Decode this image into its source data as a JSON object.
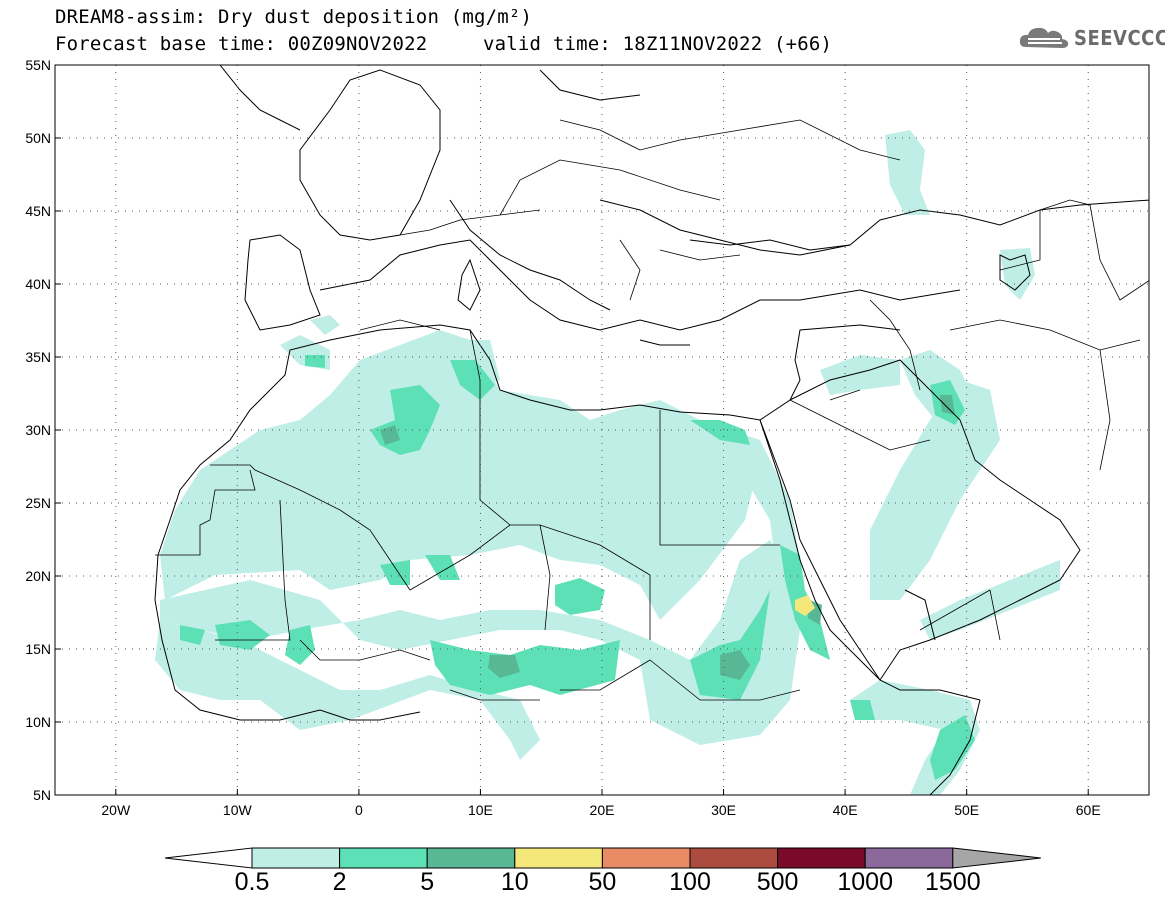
{
  "title_line1": "DREAM8-assim: Dry dust deposition (mg/m²)",
  "title_line2": "Forecast base time: 00Z09NOV2022",
  "title_valid": "valid time: 18Z11NOV2022 (+66)",
  "logo": {
    "text": "SEEVCCC",
    "icon": "cloud-logo-icon"
  },
  "map": {
    "lon_range": [
      -25,
      65
    ],
    "lat_range": [
      5,
      55
    ],
    "lon_ticks": [
      {
        "value": -20,
        "label": "20W"
      },
      {
        "value": -10,
        "label": "10W"
      },
      {
        "value": 0,
        "label": "0"
      },
      {
        "value": 10,
        "label": "10E"
      },
      {
        "value": 20,
        "label": "20E"
      },
      {
        "value": 30,
        "label": "30E"
      },
      {
        "value": 40,
        "label": "40E"
      },
      {
        "value": 50,
        "label": "50E"
      },
      {
        "value": 60,
        "label": "60E"
      }
    ],
    "lat_ticks": [
      {
        "value": 55,
        "label": "55N"
      },
      {
        "value": 50,
        "label": "50N"
      },
      {
        "value": 45,
        "label": "45N"
      },
      {
        "value": 40,
        "label": "40N"
      },
      {
        "value": 35,
        "label": "35N"
      },
      {
        "value": 30,
        "label": "30N"
      },
      {
        "value": 25,
        "label": "25N"
      },
      {
        "value": 20,
        "label": "20N"
      },
      {
        "value": 15,
        "label": "15N"
      },
      {
        "value": 10,
        "label": "10N"
      },
      {
        "value": 5,
        "label": "5N"
      }
    ],
    "grid": "dotted"
  },
  "colorbar": {
    "labels": [
      "0.5",
      "2",
      "5",
      "10",
      "50",
      "100",
      "500",
      "1000",
      "1500"
    ],
    "colors": [
      "#ffffff",
      "#bfeee6",
      "#5ee0b6",
      "#58b896",
      "#f5e87a",
      "#e98b65",
      "#ac4b3f",
      "#7a0a2a",
      "#8b6a9b",
      "#a6a6a6"
    ]
  }
}
